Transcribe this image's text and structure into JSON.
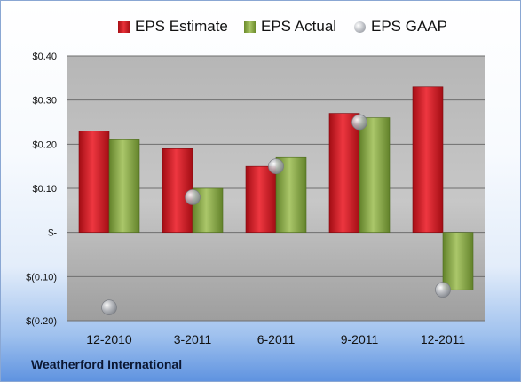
{
  "chart_data": {
    "type": "bar",
    "categories": [
      "12-2010",
      "3-2011",
      "6-2011",
      "9-2011",
      "12-2011"
    ],
    "series": [
      {
        "name": "EPS Estimate",
        "values": [
          0.23,
          0.19,
          0.15,
          0.27,
          0.33
        ],
        "color": "#d7222b"
      },
      {
        "name": "EPS Actual",
        "values": [
          0.21,
          0.1,
          0.17,
          0.26,
          -0.13
        ],
        "color": "#8fb04a"
      },
      {
        "name": "EPS GAAP",
        "values": [
          -0.17,
          0.08,
          0.15,
          0.25,
          -0.13
        ],
        "color": "#b9bcc2",
        "style": "marker"
      }
    ],
    "ylim": [
      -0.2,
      0.4
    ],
    "yticks": [
      0.4,
      0.3,
      0.2,
      0.1,
      0,
      -0.1,
      -0.2
    ],
    "ytick_labels": [
      "$0.40",
      "$0.30",
      "$0.20",
      "$0.10",
      "$-",
      "$(0.10)",
      "$(0.20)"
    ],
    "grid": true,
    "legend_position": "top"
  },
  "footer": {
    "company": "Weatherford International"
  }
}
